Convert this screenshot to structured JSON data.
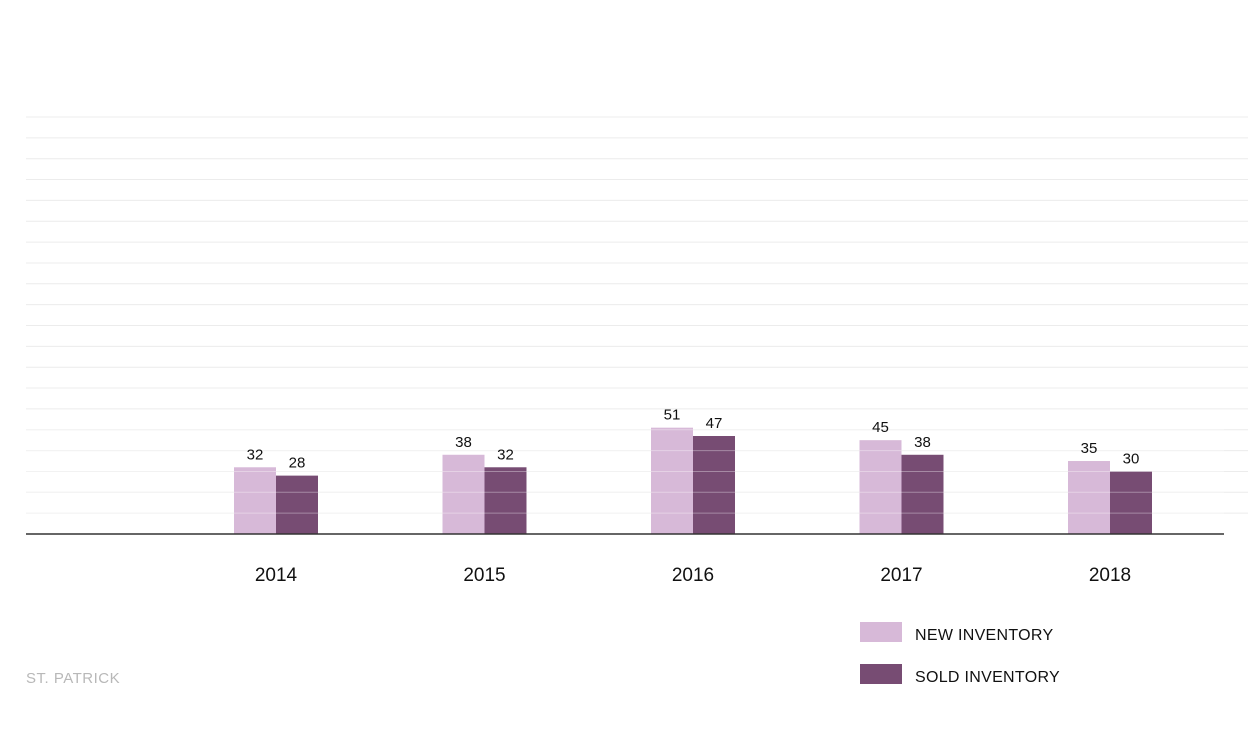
{
  "chart_data": {
    "type": "bar",
    "categories": [
      "2014",
      "2015",
      "2016",
      "2017",
      "2018"
    ],
    "series": [
      {
        "name": "NEW INVENTORY",
        "values": [
          32,
          38,
          51,
          45,
          35
        ],
        "color": "#d7b9d8"
      },
      {
        "name": "SOLD INVENTORY",
        "values": [
          28,
          32,
          47,
          38,
          30
        ],
        "color": "#774c73"
      }
    ],
    "ylim": [
      0,
      200
    ],
    "grid": true,
    "legend": "bottom-right",
    "title": "",
    "xlabel": "",
    "ylabel": ""
  },
  "footer": {
    "label": "ST. PATRICK"
  }
}
